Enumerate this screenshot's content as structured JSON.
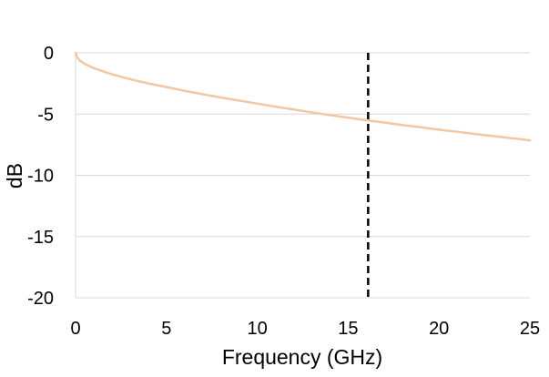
{
  "chart_data": {
    "type": "line",
    "title": "",
    "xlabel": "Frequency (GHz)",
    "ylabel": "dB",
    "xlim": [
      0,
      25
    ],
    "ylim": [
      -20,
      0
    ],
    "x_ticks": [
      0,
      5,
      10,
      15,
      20,
      25
    ],
    "y_ticks": [
      0,
      -5,
      -10,
      -15,
      -20
    ],
    "x_tick_labels": [
      "0",
      "5",
      "10",
      "15",
      "20",
      "25"
    ],
    "y_tick_labels": [
      "0",
      "-5",
      "-10",
      "-15",
      "-20"
    ],
    "grid": "horizontal",
    "legend": "none",
    "series": [
      {
        "color": "#f2c7a3",
        "x": [
          0,
          0.1,
          0.25,
          0.5,
          1,
          2,
          3,
          4,
          5,
          6,
          7,
          8,
          9,
          10,
          11,
          12,
          13,
          14,
          15,
          16,
          17,
          18,
          19,
          20,
          21,
          22,
          23,
          24,
          25
        ],
        "y": [
          0,
          -0.4,
          -0.65,
          -0.9,
          -1.25,
          -1.75,
          -2.15,
          -2.5,
          -2.8,
          -3.1,
          -3.38,
          -3.65,
          -3.9,
          -4.15,
          -4.4,
          -4.63,
          -4.86,
          -5.08,
          -5.3,
          -5.5,
          -5.7,
          -5.9,
          -6.08,
          -6.27,
          -6.45,
          -6.63,
          -6.8,
          -6.97,
          -7.15
        ]
      }
    ],
    "reference_line": {
      "x": 16.1,
      "style": "dashed",
      "color": "#000000"
    }
  }
}
